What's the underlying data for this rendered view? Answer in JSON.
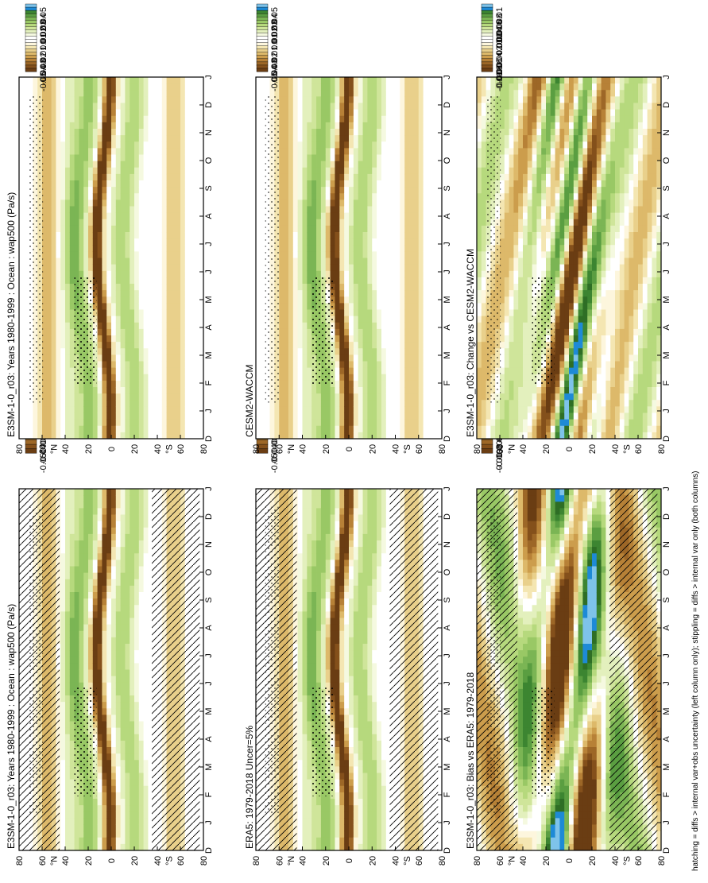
{
  "figure": {
    "footnote": "hatching = diffs > internal var+obs uncertainty (left column only); stippling = diffs > internal var only (both columns)"
  },
  "colors": {
    "positive": [
      "#ffffff",
      "#f5f9e0",
      "#e3f0bd",
      "#cfe59a",
      "#b6d97d",
      "#99c865",
      "#7bb554",
      "#5a9e41",
      "#3c8531",
      "#2e6e25",
      "#1e8ad6",
      "#7ec3ea"
    ],
    "negative": [
      "#fdf6dd",
      "#f4e6b2",
      "#e9d08b",
      "#ddb96a",
      "#cc9d4c",
      "#b78137",
      "#9d6727",
      "#84501b",
      "#6a3d13"
    ]
  },
  "chart_data": [
    {
      "id": "left-top",
      "type": "heatmap",
      "title": "E3SM-1-0_r03: Years 1980-1999 : Ocean : wap500 (Pa/s)",
      "x": [
        "D",
        "J",
        "F",
        "M",
        "A",
        "M",
        "J",
        "J",
        "A",
        "S",
        "O",
        "N",
        "D",
        "J"
      ],
      "y_ticks": [
        "80",
        "60",
        "40",
        "20",
        "0",
        "20",
        "40",
        "60",
        "80"
      ],
      "y_hemi": [
        "°N",
        "°S"
      ],
      "colorbar": [
        "0.05",
        "0.04",
        "0.03",
        "0.02",
        "0.01",
        "0",
        "-0.01",
        "-0.02",
        "-0.03",
        "-0.04",
        "-0.05"
      ],
      "hatching": true,
      "stippling": true,
      "levels": 0.05
    },
    {
      "id": "right-top",
      "type": "heatmap",
      "title": "E3SM-1-0_r03: Years 1980-1999 : Ocean : wap500 (Pa/s)",
      "x": [
        "D",
        "J",
        "F",
        "M",
        "A",
        "M",
        "J",
        "J",
        "A",
        "S",
        "O",
        "N",
        "D",
        "J"
      ],
      "y_ticks": [
        "80",
        "60",
        "40",
        "20",
        "0",
        "20",
        "40",
        "60",
        "80"
      ],
      "y_hemi": [
        "°N",
        "°S"
      ],
      "colorbar": [
        "0.05",
        "0.04",
        "0.03",
        "0.02",
        "0.01",
        "0",
        "-0.01",
        "-0.02",
        "-0.03",
        "-0.04",
        "-0.05"
      ],
      "hatching": false,
      "stippling": true,
      "levels": 0.05
    },
    {
      "id": "left-mid",
      "type": "heatmap",
      "title": "ERA5: 1979-2018 Uncer=5%",
      "x": [
        "D",
        "J",
        "F",
        "M",
        "A",
        "M",
        "J",
        "J",
        "A",
        "S",
        "O",
        "N",
        "D",
        "J"
      ],
      "y_ticks": [
        "80",
        "60",
        "40",
        "20",
        "0",
        "20",
        "40",
        "60",
        "80"
      ],
      "y_hemi": [
        "°N",
        "°S"
      ],
      "colorbar": [
        "0.05",
        "0.04",
        "0.03",
        "0.02",
        "0.01",
        "0",
        "-0.01",
        "-0.02",
        "-0.03",
        "-0.04",
        "-0.05"
      ],
      "hatching": true,
      "stippling": true,
      "levels": 0.05
    },
    {
      "id": "right-mid",
      "type": "heatmap",
      "title": "CESM2-WACCM",
      "x": [
        "D",
        "J",
        "F",
        "M",
        "A",
        "M",
        "J",
        "J",
        "A",
        "S",
        "O",
        "N",
        "D",
        "J"
      ],
      "y_ticks": [
        "80",
        "60",
        "40",
        "20",
        "0",
        "20",
        "40",
        "60",
        "80"
      ],
      "y_hemi": [
        "°N",
        "°S"
      ],
      "colorbar": [
        "0.05",
        "0.04",
        "0.03",
        "0.02",
        "0.01",
        "0",
        "-0.01",
        "-0.02",
        "-0.03",
        "-0.04",
        "-0.05"
      ],
      "hatching": false,
      "stippling": true,
      "levels": 0.05
    },
    {
      "id": "left-bot",
      "type": "heatmap",
      "title": "E3SM-1-0_r03: Bias vs ERA5: 1979-2018",
      "x": [
        "D",
        "J",
        "F",
        "M",
        "A",
        "M",
        "J",
        "J",
        "A",
        "S",
        "O",
        "N",
        "D",
        "J"
      ],
      "y_ticks": [
        "80",
        "60",
        "40",
        "20",
        "0",
        "20",
        "40",
        "60",
        "80"
      ],
      "y_hemi": [
        "°N",
        "°S"
      ],
      "colorbar": [
        "0.01",
        "0.008",
        "0.006",
        "0.004",
        "0.002",
        "0",
        "-0.002",
        "-0.004",
        "-0.006",
        "-0.008",
        "-0.01"
      ],
      "hatching": true,
      "stippling": true,
      "levels": 0.01
    },
    {
      "id": "right-bot",
      "type": "heatmap",
      "title": "E3SM-1-0_r03: Change vs CESM2-WACCM",
      "x": [
        "D",
        "J",
        "F",
        "M",
        "A",
        "M",
        "J",
        "J",
        "A",
        "S",
        "O",
        "N",
        "D",
        "J"
      ],
      "y_ticks": [
        "80",
        "60",
        "40",
        "20",
        "0",
        "20",
        "40",
        "60",
        "80"
      ],
      "y_hemi": [
        "°N",
        "°S"
      ],
      "colorbar": [
        "0.01",
        "0.008",
        "0.006",
        "0.004",
        "0.002",
        "0",
        "-0.002",
        "-0.004",
        "-0.006",
        "-0.008",
        "-0.01"
      ],
      "hatching": false,
      "stippling": true,
      "levels": 0.01
    }
  ]
}
